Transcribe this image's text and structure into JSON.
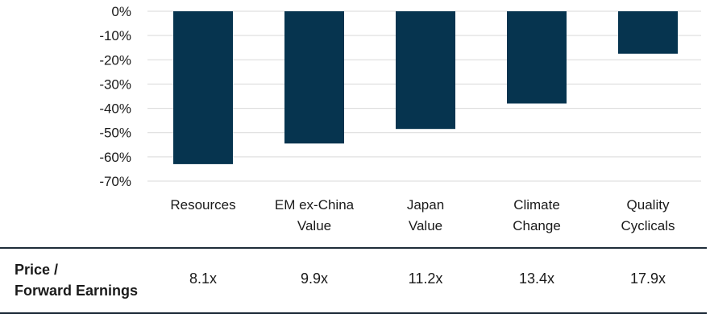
{
  "chart_data": {
    "type": "bar",
    "categories": [
      [
        "Resources"
      ],
      [
        "EM ex-China",
        "Value"
      ],
      [
        "Japan",
        "Value"
      ],
      [
        "Climate",
        "Change"
      ],
      [
        "Quality",
        "Cyclicals"
      ]
    ],
    "values": [
      -63,
      -54.5,
      -48.5,
      -38,
      -17.5
    ],
    "yticks": [
      "0%",
      "-10%",
      "-20%",
      "-30%",
      "-40%",
      "-50%",
      "-60%",
      "-70%"
    ],
    "ylim": [
      -70,
      0
    ],
    "grid": true,
    "bar_color": "#06344f",
    "grid_color": "#d9d9d9"
  },
  "table": {
    "row_label": [
      "Price /",
      "Forward Earnings"
    ],
    "values": [
      "8.1x",
      "9.9x",
      "11.2x",
      "13.4x",
      "17.9x"
    ]
  }
}
